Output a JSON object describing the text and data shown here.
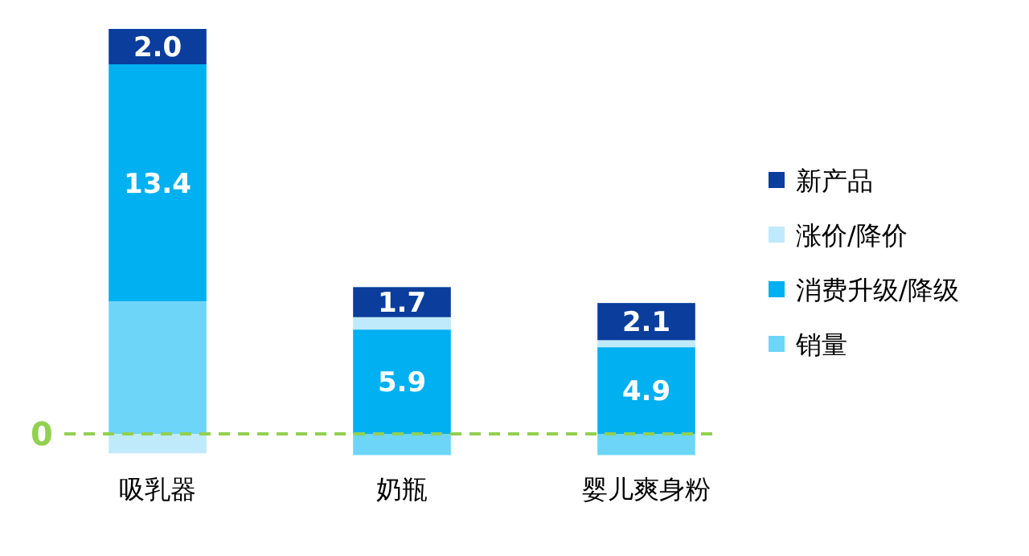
{
  "chart_data": {
    "type": "bar",
    "stacked": true,
    "categories": [
      "吸乳器",
      "奶瓶",
      "婴儿爽身粉"
    ],
    "legend": "right",
    "series": [
      {
        "name": "销量",
        "color": "#6dd5f7",
        "values": [
          7.5,
          -1.2,
          -1.2
        ]
      },
      {
        "name": "消费升级/降级",
        "color": "#00b0f0",
        "values": [
          13.4,
          5.9,
          4.9
        ],
        "value_labels": [
          "13.4",
          "5.9",
          "4.9"
        ]
      },
      {
        "name": "涨价/降价",
        "color": "#bfeafb",
        "values": [
          -1.1,
          0.7,
          0.4
        ]
      },
      {
        "name": "新产品",
        "color": "#0a3d9c",
        "values": [
          2.0,
          1.7,
          2.1
        ],
        "value_labels": [
          "2.0",
          "1.7",
          "2.1"
        ]
      }
    ],
    "ref_lines": [
      {
        "axis": "y",
        "value": 0,
        "label": "0",
        "color": "#92d050",
        "line_style": "dashed"
      }
    ]
  }
}
